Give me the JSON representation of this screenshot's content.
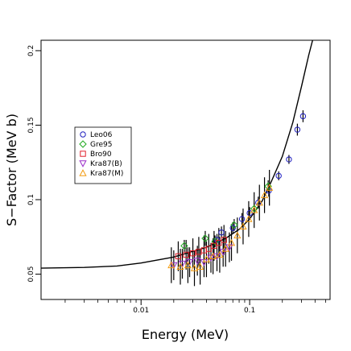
{
  "chart_data": {
    "type": "scatter",
    "xlabel": "Energy (MeV)",
    "ylabel": "S−Factor (MeV b)",
    "xscale": "log",
    "xlim": [
      0.0012,
      0.55
    ],
    "ylim": [
      0.033,
      0.207
    ],
    "xticks": [
      {
        "value": 0.01,
        "label": "0.01"
      },
      {
        "value": 0.1,
        "label": "0.1"
      }
    ],
    "yticks": [
      {
        "value": 0.05,
        "label": "0.05"
      },
      {
        "value": 0.1,
        "label": "0.1"
      },
      {
        "value": 0.15,
        "label": "0.15"
      },
      {
        "value": 0.2,
        "label": "0.2"
      }
    ],
    "grid": false,
    "legend_position": "left-center",
    "series": [
      {
        "name": "Leo06",
        "marker": "circle",
        "color": "#1f1fbf",
        "points": [
          {
            "x": 0.05,
            "y": 0.073,
            "err": 0.004
          },
          {
            "x": 0.055,
            "y": 0.078,
            "err": 0.004
          },
          {
            "x": 0.07,
            "y": 0.081,
            "err": 0.004
          },
          {
            "x": 0.085,
            "y": 0.087,
            "err": 0.004
          },
          {
            "x": 0.1,
            "y": 0.091,
            "err": 0.004
          },
          {
            "x": 0.12,
            "y": 0.098,
            "err": 0.004
          },
          {
            "x": 0.15,
            "y": 0.106,
            "err": 0.004
          },
          {
            "x": 0.185,
            "y": 0.116,
            "err": 0.003
          },
          {
            "x": 0.23,
            "y": 0.127,
            "err": 0.003
          },
          {
            "x": 0.275,
            "y": 0.147,
            "err": 0.004
          },
          {
            "x": 0.31,
            "y": 0.156,
            "err": 0.004
          }
        ]
      },
      {
        "name": "Gre95",
        "marker": "diamond",
        "color": "#1faa1f",
        "points": [
          {
            "x": 0.025,
            "y": 0.069,
            "err": 0.004
          },
          {
            "x": 0.039,
            "y": 0.074,
            "err": 0.005
          },
          {
            "x": 0.048,
            "y": 0.072,
            "err": 0.004
          },
          {
            "x": 0.072,
            "y": 0.083,
            "err": 0.004
          },
          {
            "x": 0.11,
            "y": 0.094,
            "err": 0.004
          },
          {
            "x": 0.148,
            "y": 0.109,
            "err": 0.004
          }
        ]
      },
      {
        "name": "Bro90",
        "marker": "square",
        "color": "#e0202a",
        "points": [
          {
            "x": 0.022,
            "y": 0.062,
            "err": 0.01
          },
          {
            "x": 0.026,
            "y": 0.063,
            "err": 0.01
          },
          {
            "x": 0.03,
            "y": 0.064,
            "err": 0.01
          },
          {
            "x": 0.034,
            "y": 0.065,
            "err": 0.01
          },
          {
            "x": 0.038,
            "y": 0.066,
            "err": 0.01
          },
          {
            "x": 0.042,
            "y": 0.067,
            "err": 0.01
          },
          {
            "x": 0.047,
            "y": 0.069,
            "err": 0.01
          },
          {
            "x": 0.052,
            "y": 0.071,
            "err": 0.01
          },
          {
            "x": 0.058,
            "y": 0.073,
            "err": 0.01
          }
        ]
      },
      {
        "name": "Kra87(B)",
        "marker": "triangle-down",
        "color": "#9a2cc8",
        "points": [
          {
            "x": 0.02,
            "y": 0.056,
            "err": 0.01
          },
          {
            "x": 0.024,
            "y": 0.057,
            "err": 0.01
          },
          {
            "x": 0.028,
            "y": 0.058,
            "err": 0.01
          },
          {
            "x": 0.033,
            "y": 0.059,
            "err": 0.01
          },
          {
            "x": 0.038,
            "y": 0.058,
            "err": 0.01
          },
          {
            "x": 0.044,
            "y": 0.061,
            "err": 0.01
          },
          {
            "x": 0.05,
            "y": 0.062,
            "err": 0.01
          },
          {
            "x": 0.057,
            "y": 0.065,
            "err": 0.01
          },
          {
            "x": 0.065,
            "y": 0.068,
            "err": 0.01
          }
        ]
      },
      {
        "name": "Kra87(M)",
        "marker": "triangle-up",
        "color": "#f29b12",
        "points": [
          {
            "x": 0.019,
            "y": 0.056,
            "err": 0.012
          },
          {
            "x": 0.023,
            "y": 0.055,
            "err": 0.012
          },
          {
            "x": 0.027,
            "y": 0.056,
            "err": 0.012
          },
          {
            "x": 0.031,
            "y": 0.054,
            "err": 0.012
          },
          {
            "x": 0.035,
            "y": 0.055,
            "err": 0.012
          },
          {
            "x": 0.04,
            "y": 0.06,
            "err": 0.012
          },
          {
            "x": 0.046,
            "y": 0.062,
            "err": 0.012
          },
          {
            "x": 0.053,
            "y": 0.063,
            "err": 0.012
          },
          {
            "x": 0.06,
            "y": 0.067,
            "err": 0.012
          },
          {
            "x": 0.068,
            "y": 0.071,
            "err": 0.012
          },
          {
            "x": 0.077,
            "y": 0.076,
            "err": 0.012
          },
          {
            "x": 0.087,
            "y": 0.082,
            "err": 0.012
          },
          {
            "x": 0.098,
            "y": 0.087,
            "err": 0.012
          },
          {
            "x": 0.11,
            "y": 0.093,
            "err": 0.012
          },
          {
            "x": 0.123,
            "y": 0.098,
            "err": 0.012
          },
          {
            "x": 0.137,
            "y": 0.103,
            "err": 0.012
          },
          {
            "x": 0.152,
            "y": 0.108,
            "err": 0.012
          }
        ]
      }
    ],
    "fit_curve": {
      "color": "#000000",
      "points": [
        {
          "x": 0.0012,
          "y": 0.054
        },
        {
          "x": 0.003,
          "y": 0.0545
        },
        {
          "x": 0.006,
          "y": 0.0555
        },
        {
          "x": 0.01,
          "y": 0.0575
        },
        {
          "x": 0.02,
          "y": 0.0615
        },
        {
          "x": 0.04,
          "y": 0.068
        },
        {
          "x": 0.06,
          "y": 0.074
        },
        {
          "x": 0.08,
          "y": 0.08
        },
        {
          "x": 0.1,
          "y": 0.087
        },
        {
          "x": 0.13,
          "y": 0.099
        },
        {
          "x": 0.16,
          "y": 0.113
        },
        {
          "x": 0.2,
          "y": 0.129
        },
        {
          "x": 0.25,
          "y": 0.152
        },
        {
          "x": 0.3,
          "y": 0.176
        },
        {
          "x": 0.35,
          "y": 0.197
        },
        {
          "x": 0.38,
          "y": 0.207
        }
      ]
    }
  }
}
